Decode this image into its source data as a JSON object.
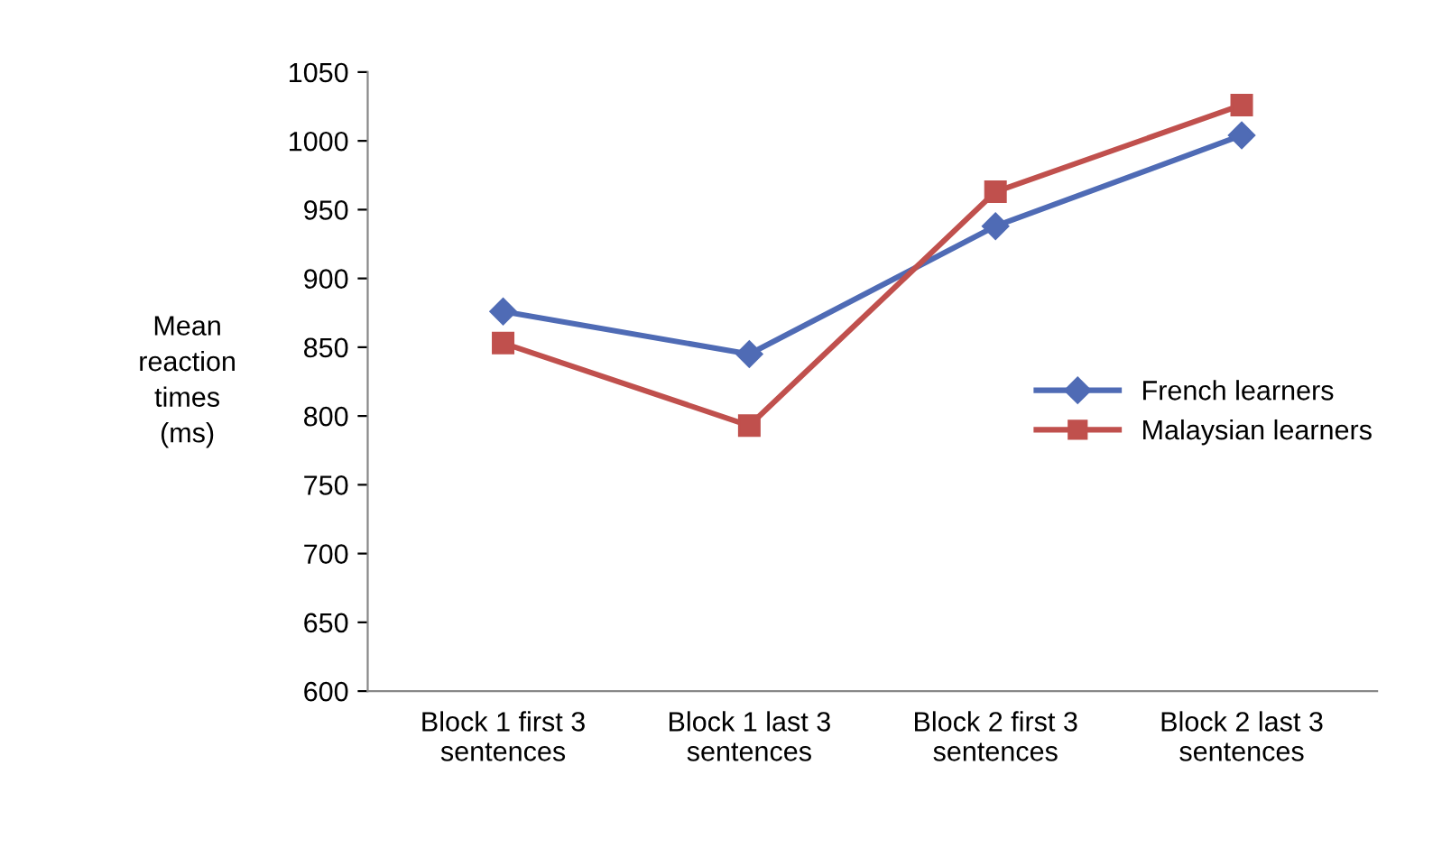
{
  "chart_data": {
    "type": "line",
    "ylabel": "Mean\nreaction\ntimes\n(ms)",
    "categories": [
      "Block 1 first 3\nsentences",
      "Block 1 last 3\nsentences",
      "Block 2 first 3\nsentences",
      "Block 2 last 3\nsentences"
    ],
    "series": [
      {
        "name": "French learners",
        "color": "#4f6bb5",
        "marker": "diamond",
        "values": [
          876,
          845,
          938,
          1004
        ]
      },
      {
        "name": "Malaysian learners",
        "color": "#c0504d",
        "marker": "square",
        "values": [
          853,
          793,
          963,
          1026
        ]
      }
    ],
    "ylim": [
      600,
      1050
    ],
    "yticks": [
      600,
      650,
      700,
      750,
      800,
      850,
      900,
      950,
      1000,
      1050
    ],
    "grid": false,
    "legend": "right",
    "line_style": "solid"
  }
}
